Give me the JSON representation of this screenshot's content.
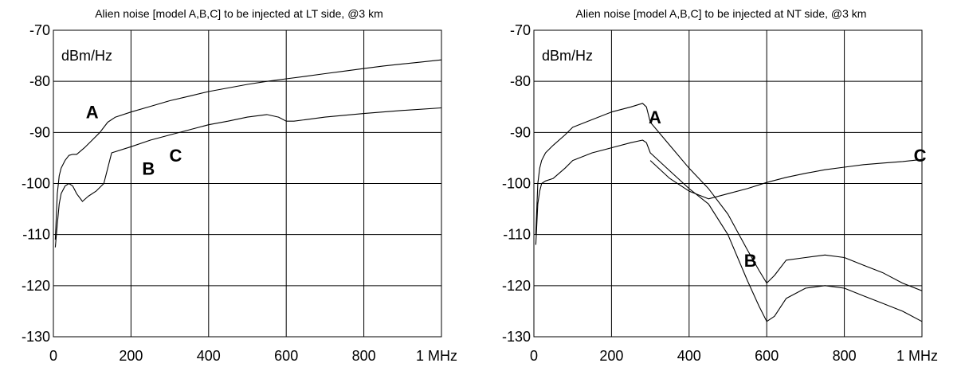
{
  "chart_data": [
    {
      "type": "line",
      "title": "Alien noise [model A,B,C] to be injected at LT side, @3 km",
      "unit_label": "dBm/Hz",
      "xlim": [
        0,
        1000
      ],
      "ylim": [
        -130,
        -70
      ],
      "x_ticks": [
        "0",
        "200",
        "400",
        "600",
        "800",
        "1 MHz"
      ],
      "y_ticks": [
        "-70",
        "-80",
        "-90",
        "-100",
        "-110",
        "-120",
        "-130"
      ],
      "grid": true,
      "series": [
        {
          "name": "A",
          "label_at": [
            100,
            -86
          ],
          "x": [
            5,
            10,
            15,
            20,
            30,
            40,
            50,
            60,
            80,
            100,
            120,
            140,
            160,
            200,
            250,
            300,
            350,
            400,
            450,
            500,
            550,
            600,
            650,
            700,
            750,
            800,
            850,
            900,
            950,
            1000
          ],
          "y": [
            -111,
            -102,
            -98.5,
            -97,
            -95.5,
            -94.5,
            -94.3,
            -94.3,
            -93,
            -91.5,
            -90,
            -88,
            -87,
            -86,
            -84.9,
            -83.8,
            -82.9,
            -82,
            -81.3,
            -80.6,
            -80,
            -79.5,
            -79,
            -78.5,
            -78,
            -77.5,
            -77,
            -76.6,
            -76.2,
            -75.8
          ]
        },
        {
          "name": "B",
          "label_at": [
            245,
            -97
          ],
          "x": [
            5,
            10,
            15,
            20,
            30,
            40,
            50,
            60,
            75,
            90,
            110,
            130,
            140,
            150,
            200,
            250,
            300,
            350,
            400,
            450,
            500,
            550,
            580,
            600,
            620,
            650,
            700,
            800,
            900,
            1000
          ],
          "y": [
            -112.5,
            -108,
            -104,
            -102,
            -100.5,
            -100,
            -100.5,
            -102,
            -103.5,
            -102.5,
            -101.5,
            -100,
            -97,
            -94,
            -92.8,
            -91.5,
            -90.5,
            -89.5,
            -88.5,
            -87.8,
            -87,
            -86.5,
            -87,
            -87.8,
            -87.8,
            -87.5,
            -87,
            -86.3,
            -85.7,
            -85.2
          ]
        },
        {
          "name": "C",
          "label_at": [
            315,
            -94.5
          ],
          "x": [],
          "y": []
        }
      ]
    },
    {
      "type": "line",
      "title": "Alien noise [model A,B,C] to be injected at NT side, @3 km",
      "unit_label": "dBm/Hz",
      "xlim": [
        0,
        1000
      ],
      "ylim": [
        -130,
        -70
      ],
      "x_ticks": [
        "0",
        "200",
        "400",
        "600",
        "800",
        "1 MHz"
      ],
      "y_ticks": [
        "-70",
        "-80",
        "-90",
        "-100",
        "-110",
        "-120",
        "-130"
      ],
      "grid": true,
      "series": [
        {
          "name": "A",
          "label_at": [
            312,
            -87
          ],
          "x": [
            5,
            10,
            15,
            20,
            30,
            50,
            80,
            100,
            150,
            200,
            250,
            280,
            290,
            300,
            350,
            400,
            450,
            500,
            550,
            580,
            600,
            620,
            650,
            700,
            750,
            800,
            850,
            900,
            950,
            1000
          ],
          "y": [
            -110,
            -100,
            -97,
            -95.5,
            -94,
            -92.5,
            -90.5,
            -89,
            -87.5,
            -86,
            -85,
            -84.3,
            -85,
            -88,
            -92.5,
            -97,
            -101,
            -106,
            -113,
            -117,
            -119.5,
            -118,
            -115,
            -114.5,
            -114,
            -114.5,
            -116,
            -117.5,
            -119.5,
            -121
          ]
        },
        {
          "name": "B",
          "label_at": [
            558,
            -115
          ],
          "x": [
            5,
            10,
            15,
            20,
            30,
            50,
            80,
            100,
            150,
            200,
            250,
            280,
            290,
            300,
            350,
            400,
            450,
            500,
            550,
            580,
            600,
            620,
            650,
            700,
            750,
            800,
            850,
            900,
            950,
            1000
          ],
          "y": [
            -112,
            -104,
            -101.5,
            -100,
            -99.5,
            -99,
            -97,
            -95.5,
            -94,
            -93,
            -92,
            -91.5,
            -92,
            -94,
            -97.5,
            -101,
            -104,
            -110,
            -119,
            -124,
            -127,
            -126,
            -122.5,
            -120.5,
            -120,
            -120.5,
            -122,
            -123.5,
            -125,
            -127
          ]
        },
        {
          "name": "C",
          "label_at": [
            995,
            -94.5
          ],
          "x": [
            300,
            350,
            400,
            450,
            500,
            550,
            600,
            650,
            700,
            750,
            800,
            850,
            900,
            950,
            1000
          ],
          "y": [
            -95.5,
            -99,
            -101.5,
            -103,
            -102,
            -101,
            -99.8,
            -98.8,
            -98,
            -97.3,
            -96.8,
            -96.3,
            -96,
            -95.7,
            -95.3
          ]
        }
      ]
    }
  ]
}
